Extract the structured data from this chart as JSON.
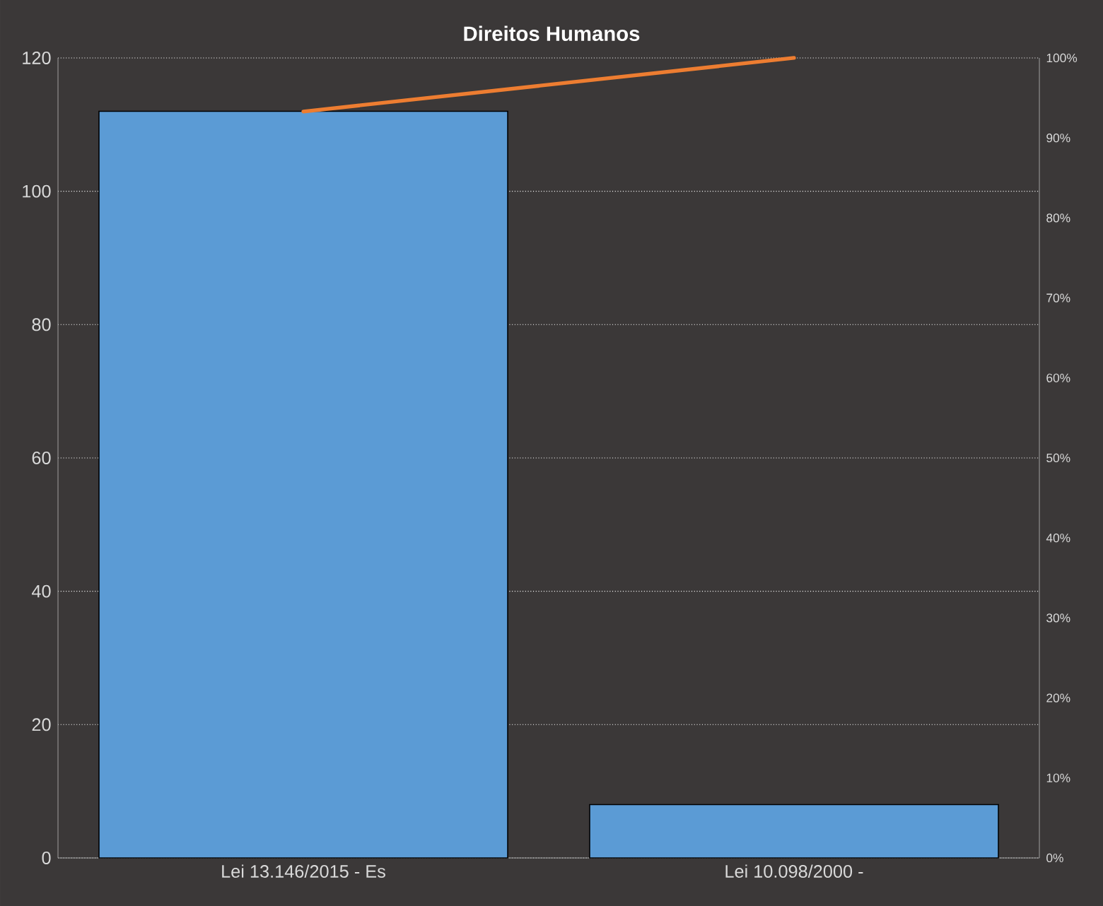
{
  "chart_data": {
    "type": "bar",
    "title": "Direitos Humanos",
    "categories": [
      "Lei 13.146/2015 - Es",
      "Lei 10.098/2000 -"
    ],
    "series": [
      {
        "color": "#5b9bd5",
        "values": [
          112,
          8
        ]
      },
      {
        "type": "line",
        "axis": "y2",
        "color": "#ed7d31",
        "values": [
          93.3,
          100
        ]
      }
    ],
    "ylim": [
      0,
      120
    ],
    "yticks": [
      0,
      20,
      40,
      60,
      80,
      100,
      120
    ],
    "y2lim": [
      0,
      100
    ],
    "y2ticks": [
      {
        "value": 0,
        "label": "0%"
      },
      {
        "value": 10,
        "label": "10%"
      },
      {
        "value": 20,
        "label": "20%"
      },
      {
        "value": 30,
        "label": "30%"
      },
      {
        "value": 40,
        "label": "40%"
      },
      {
        "value": 50,
        "label": "50%"
      },
      {
        "value": 60,
        "label": "60%"
      },
      {
        "value": 70,
        "label": "70%"
      },
      {
        "value": 80,
        "label": "80%"
      },
      {
        "value": 90,
        "label": "90%"
      },
      {
        "value": 100,
        "label": "100%"
      }
    ],
    "grid": "y"
  }
}
